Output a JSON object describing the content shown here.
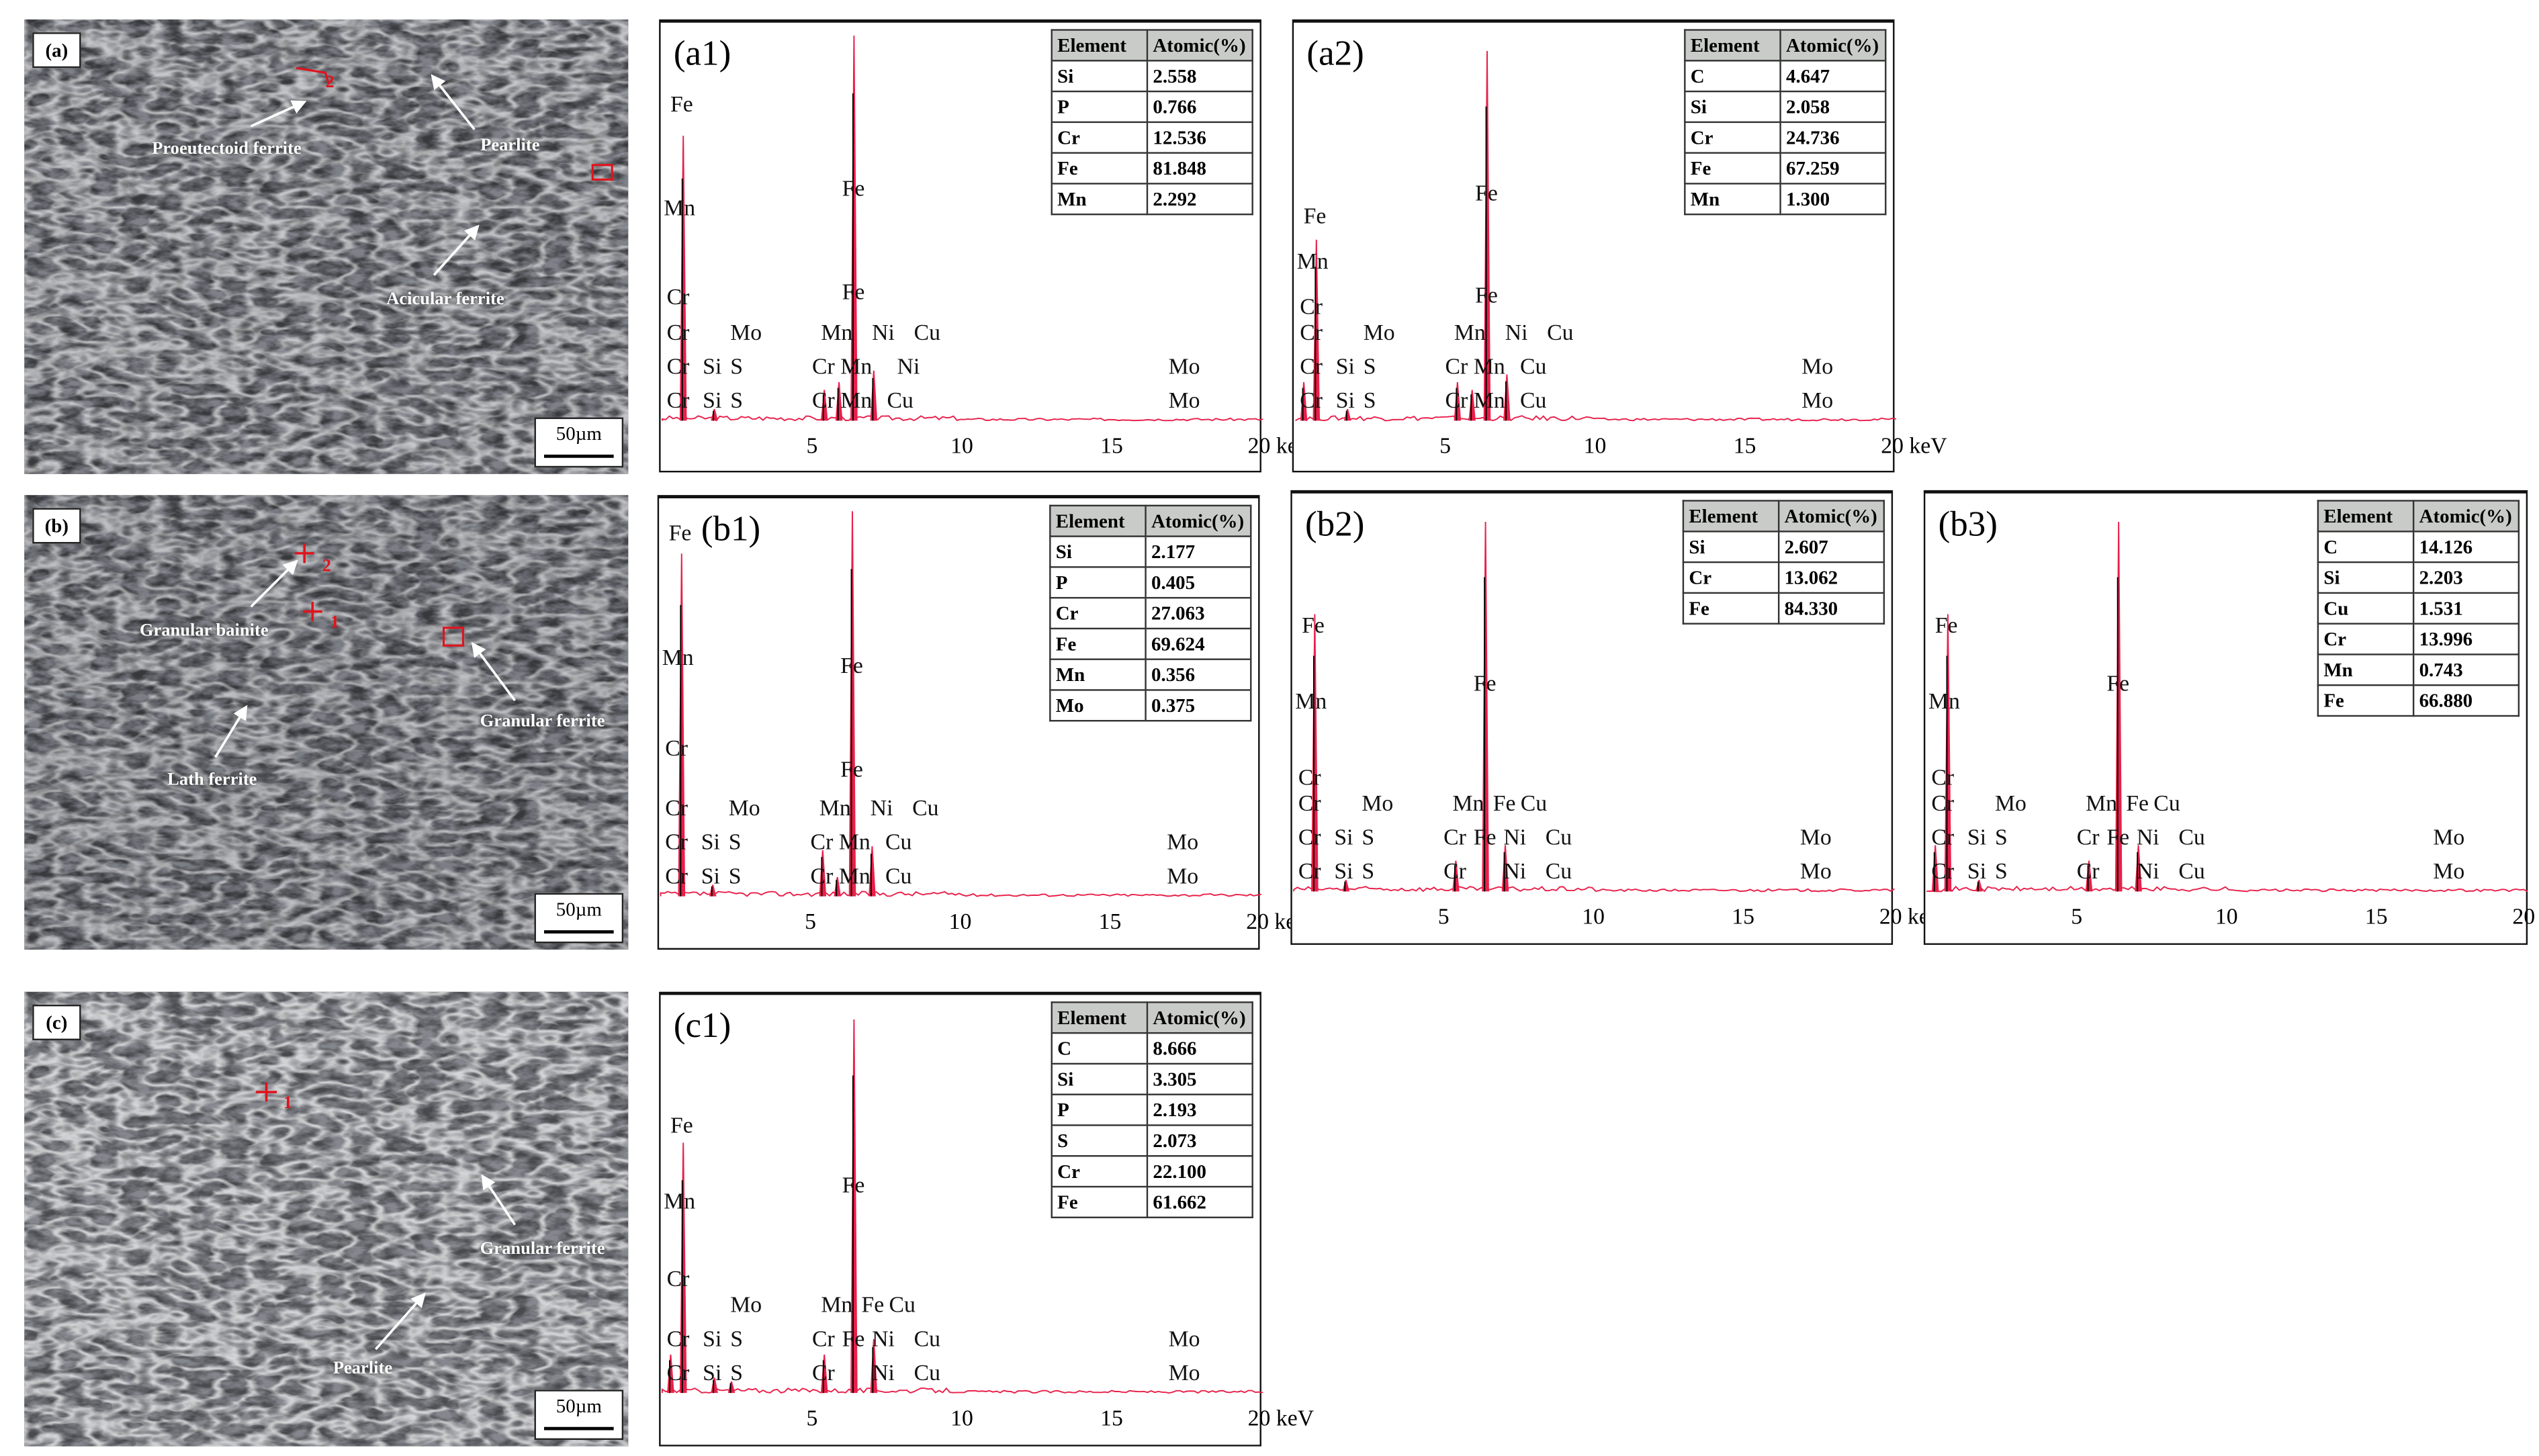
{
  "table_header": {
    "element": "Element",
    "atomic": "Atomic(%)"
  },
  "axis_ticks": [
    "5",
    "10",
    "15",
    "20 keV"
  ],
  "sem_panels": {
    "a": {
      "tag": "(a)",
      "scale_bar": "50µm",
      "annotations": [
        "Proeutectoid ferrite",
        "Pearlite",
        "Acicular ferrite"
      ],
      "markers": [
        "2"
      ]
    },
    "b": {
      "tag": "(b)",
      "scale_bar": "50µm",
      "annotations": [
        "Granular bainite",
        "Granular ferrite",
        "Lath ferrite"
      ],
      "markers": [
        "2",
        "1"
      ]
    },
    "c": {
      "tag": "(c)",
      "scale_bar": "50µm",
      "annotations": [
        "Granular ferrite",
        "Pearlite"
      ],
      "markers": [
        "1"
      ]
    }
  },
  "colors": {
    "spectrum_peak": "#e8204a",
    "marker": "#e0141e",
    "table_header_bg": "#c9cbc8"
  },
  "spectra": [
    {
      "id": "a1",
      "title": "(a1)",
      "table": [
        [
          "Si",
          "2.558"
        ],
        [
          "P",
          "0.766"
        ],
        [
          "Cr",
          "12.536"
        ],
        [
          "Fe",
          "81.848"
        ],
        [
          "Mn",
          "2.292"
        ]
      ],
      "peaks": [
        [
          0.7,
          0.74
        ],
        [
          1.74,
          0.03
        ],
        [
          5.41,
          0.08
        ],
        [
          5.9,
          0.1
        ],
        [
          6.4,
          1.0
        ],
        [
          7.06,
          0.13
        ]
      ],
      "labels": [
        [
          "Fe",
          0.27,
          "fe_l"
        ],
        [
          "Mn",
          0.05,
          "mn_l"
        ],
        [
          "Cr",
          0.15,
          "cr_l"
        ],
        [
          "Fe",
          6.0,
          "fe_hi"
        ],
        [
          "Fe",
          6.0,
          "fe_lo"
        ],
        [
          "Cr",
          0.15,
          "r1"
        ],
        [
          "Mo",
          2.27,
          "r1"
        ],
        [
          "Mn",
          5.3,
          "r1"
        ],
        [
          "Ni",
          7.0,
          "r1"
        ],
        [
          "Cu",
          8.4,
          "r1"
        ],
        [
          "Cr",
          0.15,
          "r2"
        ],
        [
          "Si",
          1.35,
          "r2"
        ],
        [
          "S",
          2.27,
          "r2"
        ],
        [
          "Cr",
          5.0,
          "r2"
        ],
        [
          "Mn",
          5.95,
          "r2"
        ],
        [
          "Ni",
          7.84,
          "r2"
        ],
        [
          "Mo",
          16.9,
          "r2"
        ],
        [
          "Cr",
          0.15,
          "r3"
        ],
        [
          "Si",
          1.35,
          "r3"
        ],
        [
          "S",
          2.27,
          "r3"
        ],
        [
          "Cr",
          5.0,
          "r3"
        ],
        [
          "Mn",
          5.95,
          "r3"
        ],
        [
          "Cu",
          7.5,
          "r3"
        ],
        [
          "Mo",
          16.9,
          "r3"
        ]
      ]
    },
    {
      "id": "a2",
      "title": "(a2)",
      "table": [
        [
          "C",
          "4.647"
        ],
        [
          "Si",
          "2.058"
        ],
        [
          "Cr",
          "24.736"
        ],
        [
          "Fe",
          "67.259"
        ],
        [
          "Mn",
          "1.300"
        ]
      ],
      "peaks": [
        [
          0.28,
          0.1
        ],
        [
          0.7,
          0.47
        ],
        [
          1.74,
          0.03
        ],
        [
          5.41,
          0.1
        ],
        [
          5.9,
          0.08
        ],
        [
          6.4,
          0.96
        ],
        [
          7.06,
          0.12
        ]
      ],
      "labels": [
        [
          "Fe",
          0.27,
          "fe_l"
        ],
        [
          "Mn",
          0.05,
          "mn_l"
        ],
        [
          "Cr",
          0.15,
          "cr_l"
        ],
        [
          "Fe",
          6.0,
          "fe_hi"
        ],
        [
          "Fe",
          6.0,
          "fe_lo"
        ],
        [
          "Cr",
          0.15,
          "r1"
        ],
        [
          "Mo",
          2.27,
          "r1"
        ],
        [
          "Mn",
          5.3,
          "r1"
        ],
        [
          "Ni",
          7.0,
          "r1"
        ],
        [
          "Cu",
          8.4,
          "r1"
        ],
        [
          "Cr",
          0.15,
          "r2"
        ],
        [
          "Si",
          1.35,
          "r2"
        ],
        [
          "S",
          2.27,
          "r2"
        ],
        [
          "Cr",
          5.0,
          "r2"
        ],
        [
          "Mn",
          5.95,
          "r2"
        ],
        [
          "Cu",
          7.5,
          "r2"
        ],
        [
          "Mo",
          16.9,
          "r2"
        ],
        [
          "Cr",
          0.15,
          "r3"
        ],
        [
          "Si",
          1.35,
          "r3"
        ],
        [
          "S",
          2.27,
          "r3"
        ],
        [
          "Cr",
          5.0,
          "r3"
        ],
        [
          "Mn",
          5.95,
          "r3"
        ],
        [
          "Cu",
          7.5,
          "r3"
        ],
        [
          "Mo",
          16.9,
          "r3"
        ]
      ]
    },
    {
      "id": "b1",
      "title": "(b1)",
      "table": [
        [
          "Si",
          "2.177"
        ],
        [
          "P",
          "0.405"
        ],
        [
          "Cr",
          "27.063"
        ],
        [
          "Fe",
          "69.624"
        ],
        [
          "Mn",
          "0.356"
        ],
        [
          "Mo",
          "0.375"
        ]
      ],
      "peaks": [
        [
          0.7,
          0.89
        ],
        [
          1.74,
          0.03
        ],
        [
          5.41,
          0.12
        ],
        [
          5.9,
          0.05
        ],
        [
          6.4,
          1.0
        ],
        [
          7.06,
          0.13
        ]
      ],
      "labels": [
        [
          "Fe",
          0.27,
          "fe_l"
        ],
        [
          "Mn",
          0.05,
          "mn_l"
        ],
        [
          "Cr",
          0.15,
          "cr_l"
        ],
        [
          "Fe",
          6.0,
          "fe_hi"
        ],
        [
          "Fe",
          6.0,
          "fe_lo"
        ],
        [
          "Cr",
          0.15,
          "r1"
        ],
        [
          "Mo",
          2.27,
          "r1"
        ],
        [
          "Mn",
          5.3,
          "r1"
        ],
        [
          "Ni",
          7.0,
          "r1"
        ],
        [
          "Cu",
          8.4,
          "r1"
        ],
        [
          "Cr",
          0.15,
          "r2"
        ],
        [
          "Si",
          1.35,
          "r2"
        ],
        [
          "S",
          2.27,
          "r2"
        ],
        [
          "Cr",
          5.0,
          "r2"
        ],
        [
          "Mn",
          5.95,
          "r2"
        ],
        [
          "Cu",
          7.5,
          "r2"
        ],
        [
          "Mo",
          16.9,
          "r2"
        ],
        [
          "Cr",
          0.15,
          "r3"
        ],
        [
          "Si",
          1.35,
          "r3"
        ],
        [
          "S",
          2.27,
          "r3"
        ],
        [
          "Cr",
          5.0,
          "r3"
        ],
        [
          "Mn",
          5.95,
          "r3"
        ],
        [
          "Cu",
          7.5,
          "r3"
        ],
        [
          "Mo",
          16.9,
          "r3"
        ]
      ]
    },
    {
      "id": "b2",
      "title": "(b2)",
      "table": [
        [
          "Si",
          "2.607"
        ],
        [
          "Cr",
          "13.062"
        ],
        [
          "Fe",
          "84.330"
        ]
      ],
      "peaks": [
        [
          0.7,
          0.72
        ],
        [
          1.74,
          0.03
        ],
        [
          5.41,
          0.08
        ],
        [
          6.4,
          0.96
        ],
        [
          7.06,
          0.12
        ]
      ],
      "labels": [
        [
          "Fe",
          0.27,
          "fe_l"
        ],
        [
          "Mn",
          0.05,
          "mn_l"
        ],
        [
          "Cr",
          0.15,
          "cr_l"
        ],
        [
          "Fe",
          6.0,
          "fe_hi"
        ],
        [
          "Cr",
          0.15,
          "r1"
        ],
        [
          "Mo",
          2.27,
          "r1"
        ],
        [
          "Mn",
          5.3,
          "r1"
        ],
        [
          "Fe",
          6.65,
          "r1"
        ],
        [
          "Cu",
          7.57,
          "r1"
        ],
        [
          "Cr",
          0.15,
          "r2"
        ],
        [
          "Si",
          1.35,
          "r2"
        ],
        [
          "S",
          2.27,
          "r2"
        ],
        [
          "Cr",
          5.0,
          "r2"
        ],
        [
          "Fe",
          6.0,
          "r2"
        ],
        [
          "Ni",
          7.0,
          "r2"
        ],
        [
          "Cu",
          8.4,
          "r2"
        ],
        [
          "Mo",
          16.9,
          "r2"
        ],
        [
          "Cr",
          0.15,
          "r3"
        ],
        [
          "Si",
          1.35,
          "r3"
        ],
        [
          "S",
          2.27,
          "r3"
        ],
        [
          "Cr",
          5.0,
          "r3"
        ],
        [
          "Ni",
          7.0,
          "r3"
        ],
        [
          "Cu",
          8.4,
          "r3"
        ],
        [
          "Mo",
          16.9,
          "r3"
        ]
      ]
    },
    {
      "id": "b3",
      "title": "(b3)",
      "table": [
        [
          "C",
          "14.126"
        ],
        [
          "Si",
          "2.203"
        ],
        [
          "Cu",
          "1.531"
        ],
        [
          "Cr",
          "13.996"
        ],
        [
          "Mn",
          "0.743"
        ],
        [
          "Fe",
          "66.880"
        ]
      ],
      "peaks": [
        [
          0.28,
          0.12
        ],
        [
          0.7,
          0.72
        ],
        [
          1.74,
          0.03
        ],
        [
          5.41,
          0.08
        ],
        [
          6.4,
          0.96
        ],
        [
          7.06,
          0.12
        ]
      ],
      "labels": [
        [
          "Fe",
          0.27,
          "fe_l"
        ],
        [
          "Mn",
          0.05,
          "mn_l"
        ],
        [
          "Cr",
          0.15,
          "cr_l"
        ],
        [
          "Fe",
          6.0,
          "fe_hi"
        ],
        [
          "Cr",
          0.15,
          "r1"
        ],
        [
          "Mo",
          2.27,
          "r1"
        ],
        [
          "Mn",
          5.3,
          "r1"
        ],
        [
          "Fe",
          6.65,
          "r1"
        ],
        [
          "Cu",
          7.57,
          "r1"
        ],
        [
          "Cr",
          0.15,
          "r2"
        ],
        [
          "Si",
          1.35,
          "r2"
        ],
        [
          "S",
          2.27,
          "r2"
        ],
        [
          "Cr",
          5.0,
          "r2"
        ],
        [
          "Fe",
          6.0,
          "r2"
        ],
        [
          "Ni",
          7.0,
          "r2"
        ],
        [
          "Cu",
          8.4,
          "r2"
        ],
        [
          "Mo",
          16.9,
          "r2"
        ],
        [
          "Cr",
          0.15,
          "r3"
        ],
        [
          "Si",
          1.35,
          "r3"
        ],
        [
          "S",
          2.27,
          "r3"
        ],
        [
          "Cr",
          5.0,
          "r3"
        ],
        [
          "Ni",
          7.0,
          "r3"
        ],
        [
          "Cu",
          8.4,
          "r3"
        ],
        [
          "Mo",
          16.9,
          "r3"
        ]
      ]
    },
    {
      "id": "c1",
      "title": "(c1)",
      "table": [
        [
          "C",
          "8.666"
        ],
        [
          "Si",
          "3.305"
        ],
        [
          "P",
          "2.193"
        ],
        [
          "S",
          "2.073"
        ],
        [
          "Cr",
          "22.100"
        ],
        [
          "Fe",
          "61.662"
        ]
      ],
      "peaks": [
        [
          0.28,
          0.1
        ],
        [
          0.7,
          0.65
        ],
        [
          1.74,
          0.04
        ],
        [
          2.31,
          0.03
        ],
        [
          5.41,
          0.1
        ],
        [
          6.4,
          0.97
        ],
        [
          7.06,
          0.14
        ]
      ],
      "labels": [
        [
          "Fe",
          0.27,
          "fe_l"
        ],
        [
          "Mn",
          0.05,
          "mn_l"
        ],
        [
          "Cr",
          0.15,
          "cr_l"
        ],
        [
          "Fe",
          6.0,
          "fe_hi"
        ],
        [
          "Mo",
          2.27,
          "r1"
        ],
        [
          "Mn",
          5.3,
          "r1"
        ],
        [
          "Fe",
          6.65,
          "r1"
        ],
        [
          "Cu",
          7.57,
          "r1"
        ],
        [
          "Cr",
          0.15,
          "r2"
        ],
        [
          "Si",
          1.35,
          "r2"
        ],
        [
          "S",
          2.27,
          "r2"
        ],
        [
          "Cr",
          5.0,
          "r2"
        ],
        [
          "Fe",
          6.0,
          "r2"
        ],
        [
          "Ni",
          7.0,
          "r2"
        ],
        [
          "Cu",
          8.4,
          "r2"
        ],
        [
          "Mo",
          16.9,
          "r2"
        ],
        [
          "Cr",
          0.15,
          "r3"
        ],
        [
          "Si",
          1.35,
          "r3"
        ],
        [
          "S",
          2.27,
          "r3"
        ],
        [
          "Cr",
          5.0,
          "r3"
        ],
        [
          "Ni",
          7.0,
          "r3"
        ],
        [
          "Cu",
          8.4,
          "r3"
        ],
        [
          "Mo",
          16.9,
          "r3"
        ]
      ]
    }
  ]
}
